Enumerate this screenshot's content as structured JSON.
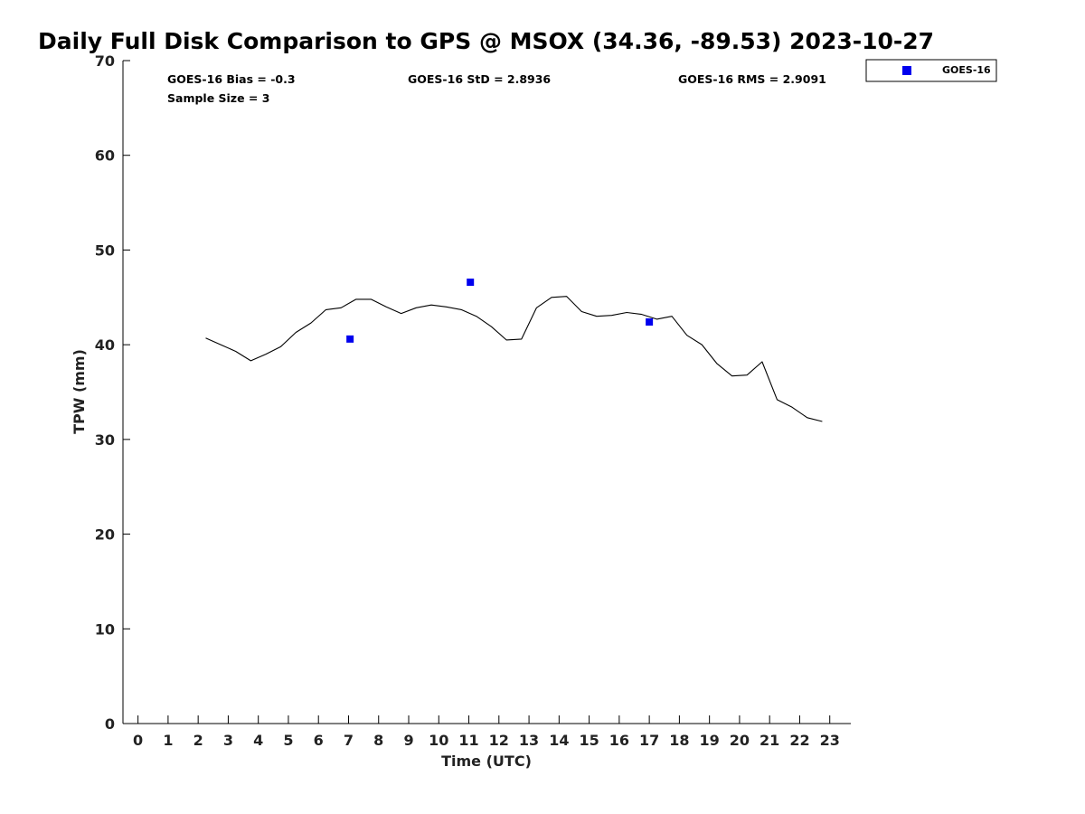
{
  "chart_data": {
    "type": "line",
    "title": "Daily Full Disk Comparison to GPS @ MSOX (34.36, -89.53) 2023-10-27",
    "xlabel": "Time (UTC)",
    "ylabel": "TPW (mm)",
    "xlim": [
      -0.5,
      23.7
    ],
    "ylim": [
      0,
      70
    ],
    "x_ticks": [
      0,
      1,
      2,
      3,
      4,
      5,
      6,
      7,
      8,
      9,
      10,
      11,
      12,
      13,
      14,
      15,
      16,
      17,
      18,
      19,
      20,
      21,
      22,
      23
    ],
    "y_ticks": [
      0,
      10,
      20,
      30,
      40,
      50,
      60,
      70
    ],
    "grid": false,
    "stats": {
      "bias": "GOES-16 Bias = -0.3",
      "std": "GOES-16 StD = 2.8936",
      "rms": "GOES-16 RMS = 2.9091",
      "sample_size": "Sample Size = 3"
    },
    "legend": {
      "position": "top-right",
      "entries": [
        {
          "label": "GOES-16",
          "color": "#0000ee",
          "marker": "square"
        }
      ]
    },
    "series": [
      {
        "kind": "line",
        "color": "#000000",
        "x": [
          2.25,
          2.75,
          3.25,
          3.75,
          4.25,
          4.75,
          5.25,
          5.75,
          6.25,
          6.75,
          7.25,
          7.75,
          8.25,
          8.75,
          9.25,
          9.75,
          10.25,
          10.75,
          11.25,
          11.75,
          12.25,
          12.75,
          13.25,
          13.75,
          14.25,
          14.75,
          15.25,
          15.75,
          16.25,
          16.75,
          17.25,
          17.75,
          18.25,
          18.75,
          19.25,
          19.75,
          20.25,
          20.75,
          21.25,
          21.75,
          22.25,
          22.75
        ],
        "y": [
          40.7,
          40.0,
          39.3,
          38.3,
          39.0,
          39.8,
          41.3,
          42.3,
          43.7,
          43.9,
          44.8,
          44.8,
          44.0,
          43.3,
          43.9,
          44.2,
          44.0,
          43.7,
          43.0,
          41.9,
          40.5,
          40.6,
          43.9,
          45.0,
          45.1,
          43.5,
          43.0,
          43.1,
          43.4,
          43.2,
          42.7,
          43.0,
          41.0,
          40.0,
          38.0,
          36.7,
          36.8,
          38.2,
          34.2,
          33.4,
          32.3,
          31.9
        ]
      },
      {
        "name": "GOES-16",
        "kind": "scatter",
        "color": "#0000ee",
        "x": [
          7.05,
          11.05,
          17.0
        ],
        "y": [
          40.6,
          46.6,
          42.4
        ]
      }
    ]
  }
}
